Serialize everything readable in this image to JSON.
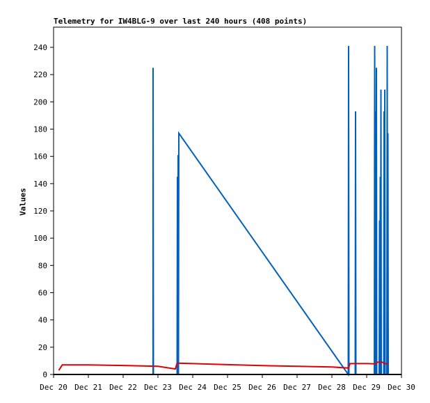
{
  "chart_data": {
    "type": "line",
    "title": "Telemetry for IW4BLG-9 over last 240 hours (408 points)",
    "xlabel": "",
    "ylabel": "Values",
    "xlim": [
      20.0,
      30.0
    ],
    "ylim": [
      0,
      250
    ],
    "yticks": [
      0,
      20,
      40,
      60,
      80,
      100,
      120,
      140,
      160,
      180,
      200,
      220,
      240
    ],
    "xticks": [
      {
        "value": 20,
        "label": "Dec 20"
      },
      {
        "value": 21,
        "label": "Dec 21"
      },
      {
        "value": 22,
        "label": "Dec 22"
      },
      {
        "value": 23,
        "label": "Dec 23"
      },
      {
        "value": 24,
        "label": "Dec 24"
      },
      {
        "value": 25,
        "label": "Dec 25"
      },
      {
        "value": 26,
        "label": "Dec 26"
      },
      {
        "value": 27,
        "label": "Dec 27"
      },
      {
        "value": 28,
        "label": "Dec 28"
      },
      {
        "value": 29,
        "label": "Dec 29"
      },
      {
        "value": 30,
        "label": "Dec 30"
      }
    ],
    "x_unit": "day of December",
    "series": [
      {
        "color": "#0060c0",
        "points": [
          [
            22.86,
            0
          ],
          [
            22.86,
            225
          ],
          [
            22.87,
            0
          ],
          [
            23.55,
            0
          ],
          [
            23.56,
            145
          ],
          [
            23.57,
            0
          ],
          [
            23.58,
            161
          ],
          [
            23.59,
            0
          ],
          [
            23.6,
            177
          ],
          [
            28.47,
            0
          ],
          [
            28.48,
            241
          ],
          [
            28.49,
            0
          ],
          [
            28.67,
            0
          ],
          [
            28.68,
            193
          ],
          [
            28.69,
            0
          ],
          [
            29.22,
            0
          ],
          [
            29.23,
            241
          ],
          [
            29.25,
            0
          ],
          [
            29.26,
            193
          ],
          [
            29.27,
            0
          ],
          [
            29.28,
            225
          ],
          [
            29.29,
            0
          ],
          [
            29.36,
            0
          ],
          [
            29.37,
            113
          ],
          [
            29.38,
            0
          ],
          [
            29.39,
            145
          ],
          [
            29.4,
            0
          ],
          [
            29.41,
            209
          ],
          [
            29.42,
            0
          ],
          [
            29.49,
            0
          ],
          [
            29.5,
            193
          ],
          [
            29.51,
            0
          ],
          [
            29.52,
            209
          ],
          [
            29.53,
            0
          ],
          [
            29.58,
            0
          ],
          [
            29.59,
            241
          ],
          [
            29.6,
            0
          ],
          [
            29.61,
            177
          ],
          [
            29.62,
            0
          ]
        ]
      },
      {
        "color": "#e00000",
        "points": [
          [
            20.15,
            3
          ],
          [
            20.25,
            7
          ],
          [
            21.0,
            7
          ],
          [
            22.0,
            6.6
          ],
          [
            23.0,
            6
          ],
          [
            23.5,
            4
          ],
          [
            23.55,
            8.3
          ],
          [
            24.0,
            8
          ],
          [
            25.0,
            7.2
          ],
          [
            26.0,
            6.5
          ],
          [
            27.0,
            6
          ],
          [
            28.0,
            5.5
          ],
          [
            28.48,
            4.7
          ],
          [
            28.52,
            8
          ],
          [
            29.0,
            8
          ],
          [
            29.25,
            7.8
          ],
          [
            29.3,
            9
          ],
          [
            29.45,
            9
          ],
          [
            29.5,
            8
          ],
          [
            29.62,
            7.8
          ]
        ]
      }
    ],
    "grid": false
  }
}
